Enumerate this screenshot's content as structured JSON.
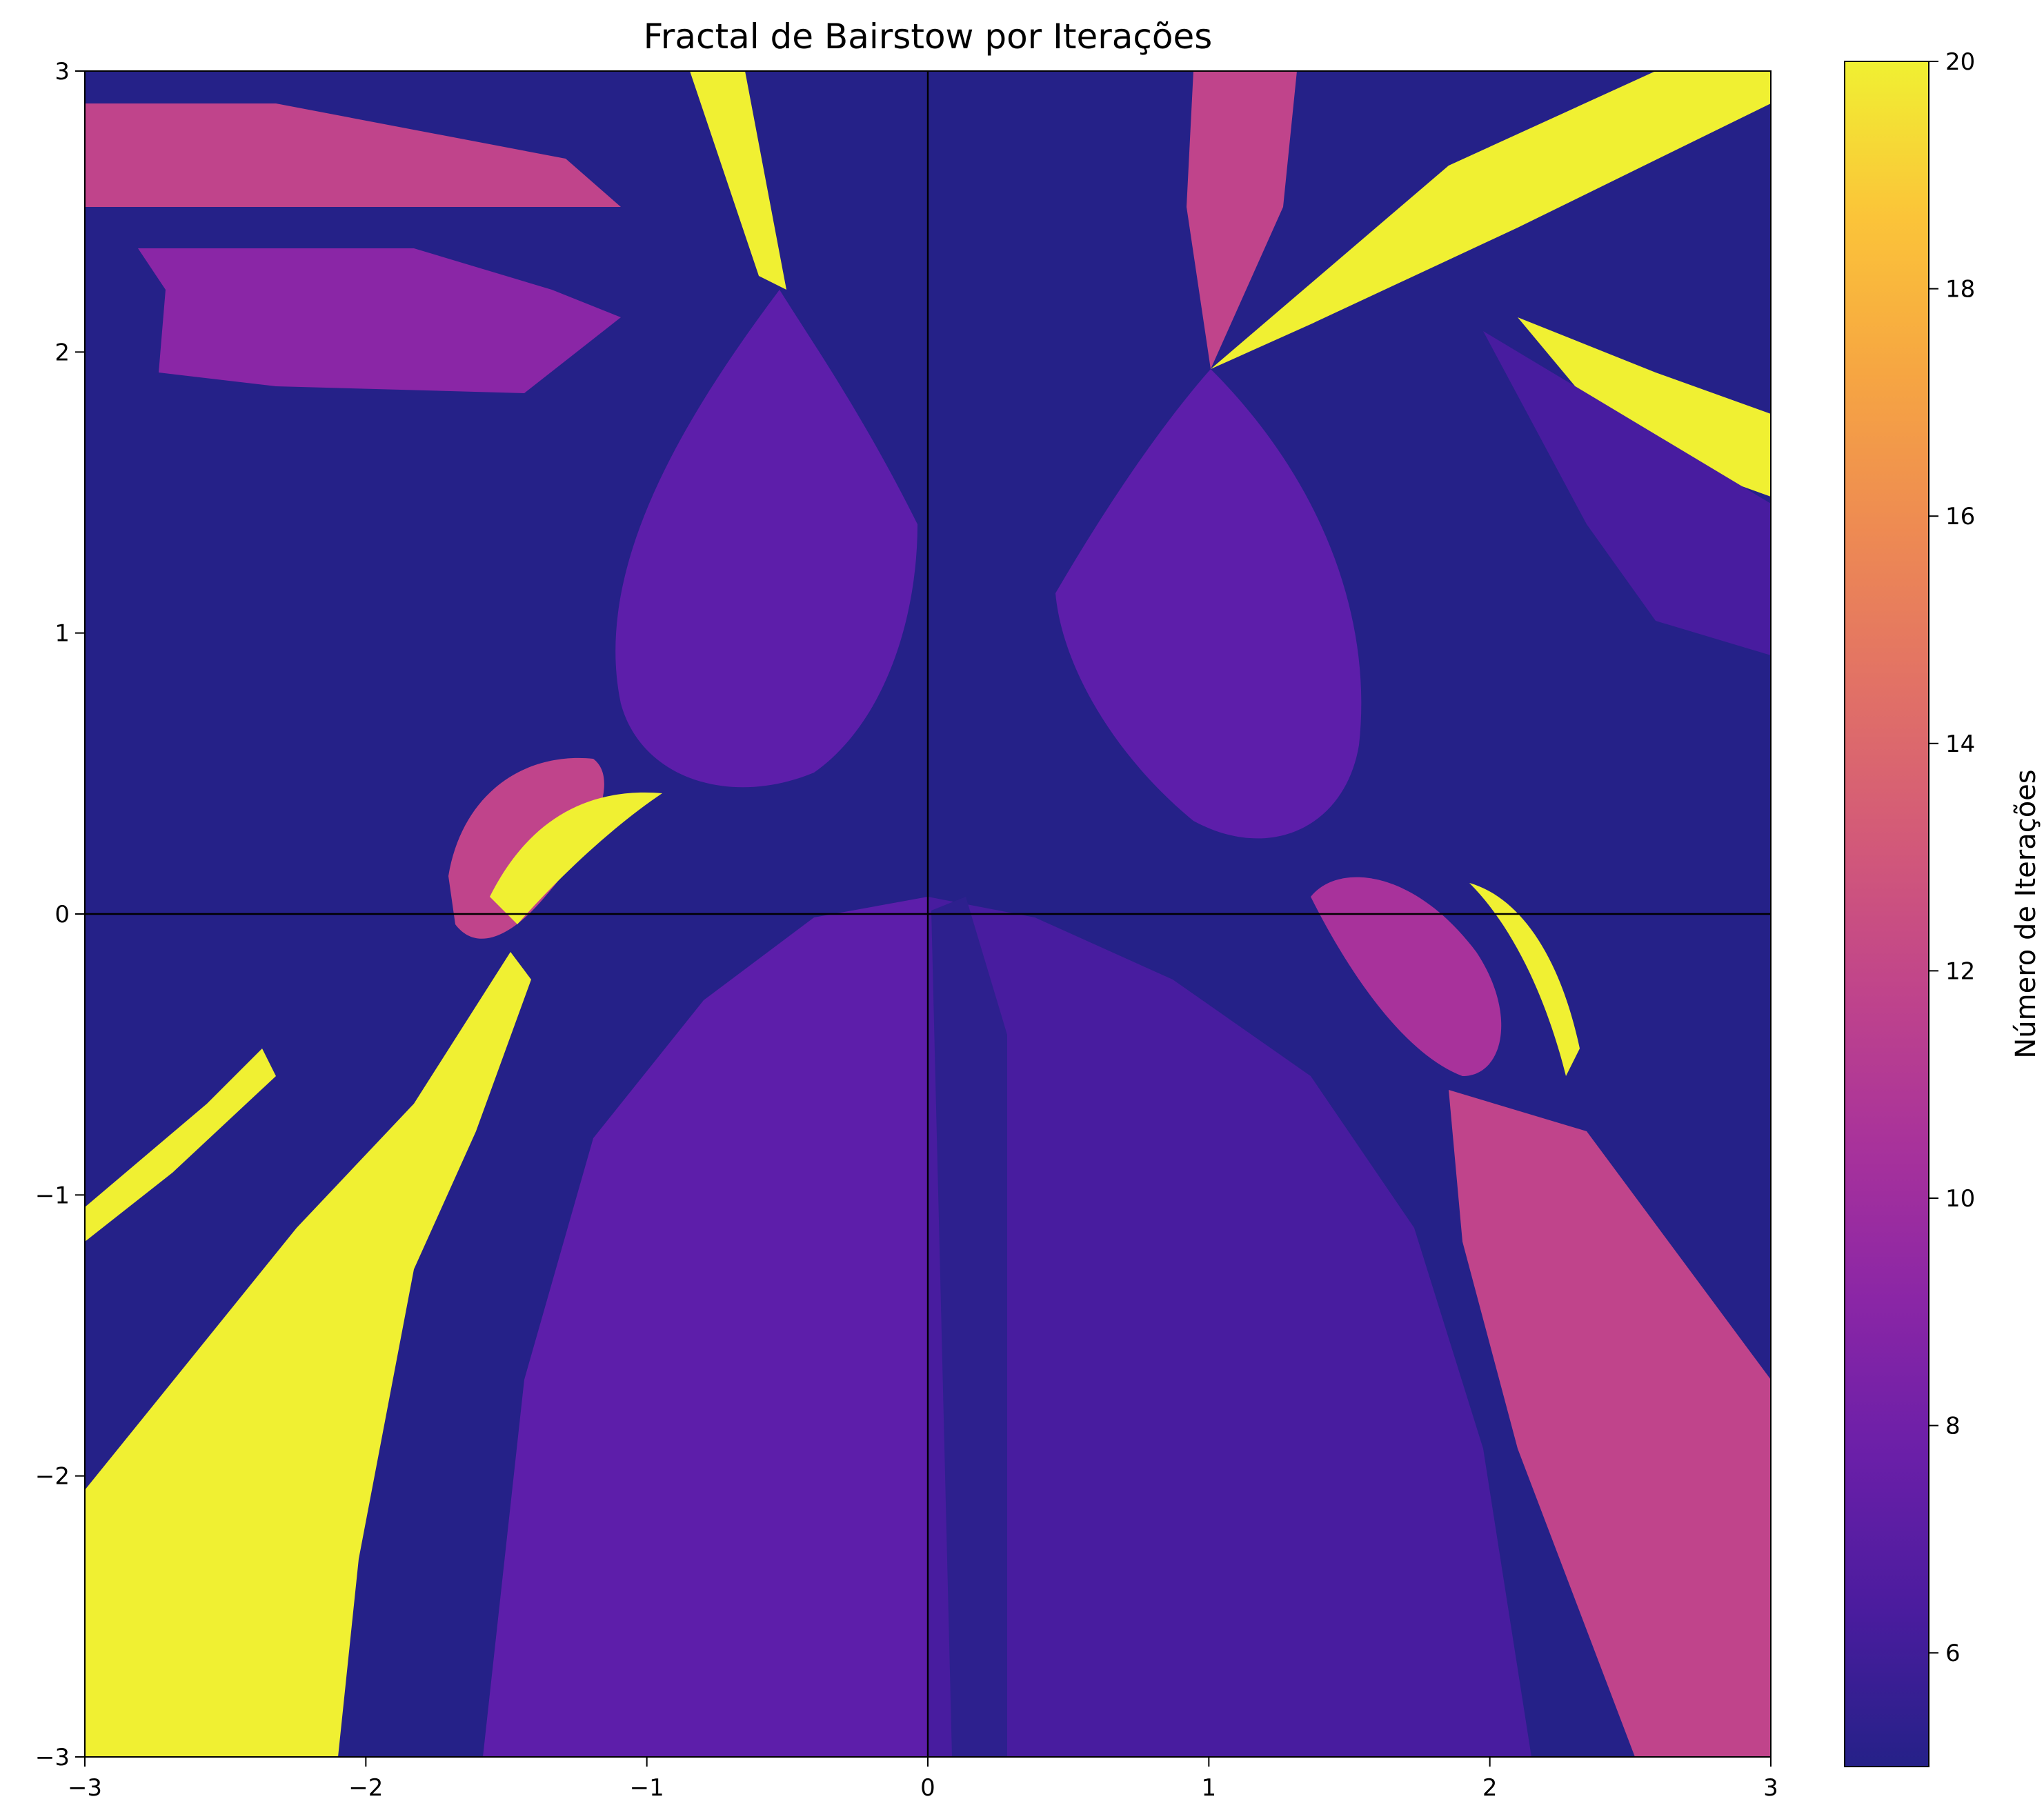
{
  "chart_data": {
    "type": "heatmap",
    "title": "Fractal de Bairstow por Iterações",
    "xlabel": "",
    "ylabel": "",
    "xlim": [
      -3,
      3
    ],
    "ylim": [
      -3,
      3
    ],
    "x_ticks": [
      -3,
      -2,
      -1,
      0,
      1,
      2,
      3
    ],
    "y_ticks": [
      -3,
      -2,
      -1,
      0,
      1,
      2,
      3
    ],
    "x_tick_labels": [
      "−3",
      "−2",
      "−1",
      "0",
      "1",
      "2",
      "3"
    ],
    "y_tick_labels": [
      "−3",
      "−2",
      "−1",
      "0",
      "1",
      "2",
      "3"
    ],
    "grid": false,
    "reference_lines": {
      "x": 0,
      "y": 0,
      "color": "#000000"
    },
    "colormap": "plasma",
    "colorbar": {
      "label": "Número de Iterações",
      "range": [
        5,
        20
      ],
      "ticks": [
        6,
        8,
        10,
        12,
        14,
        16,
        18,
        20
      ],
      "tick_labels": [
        "6",
        "8",
        "10",
        "12",
        "14",
        "16",
        "18",
        "20"
      ],
      "stops": [
        "#252188",
        "#4a1c9e",
        "#6a1fa8",
        "#8a26a6",
        "#a8329b",
        "#c0448b",
        "#d35a78",
        "#e27265",
        "#ee8b52",
        "#f6a642",
        "#fbc439",
        "#f0f032"
      ]
    },
    "regions_note_values": {
      "min_iterations_color": "#252188",
      "max_iterations_color": "#f0f032"
    }
  }
}
